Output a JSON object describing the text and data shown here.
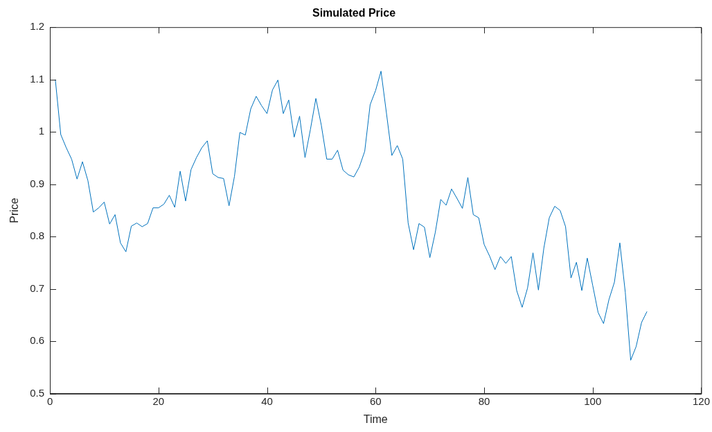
{
  "chart_data": {
    "type": "line",
    "title": "Simulated Price",
    "xlabel": "Time",
    "ylabel": "Price",
    "x": [
      1,
      2,
      3,
      4,
      5,
      6,
      7,
      8,
      9,
      10,
      11,
      12,
      13,
      14,
      15,
      16,
      17,
      18,
      19,
      20,
      21,
      22,
      23,
      24,
      25,
      26,
      27,
      28,
      29,
      30,
      31,
      32,
      33,
      34,
      35,
      36,
      37,
      38,
      39,
      40,
      41,
      42,
      43,
      44,
      45,
      46,
      47,
      48,
      49,
      50,
      51,
      52,
      53,
      54,
      55,
      56,
      57,
      58,
      59,
      60,
      61,
      62,
      63,
      64,
      65,
      66,
      67,
      68,
      69,
      70,
      71,
      72,
      73,
      74,
      75,
      76,
      77,
      78,
      79,
      80,
      81,
      82,
      83,
      84,
      85,
      86,
      87,
      88,
      89,
      90,
      91,
      92,
      93,
      94,
      95,
      96,
      97,
      98,
      99,
      100,
      101,
      102,
      103,
      104,
      105,
      106,
      107,
      108,
      109,
      110
    ],
    "series": [
      {
        "color": "#0072bd",
        "values": [
          1.1,
          0.995,
          0.97,
          0.948,
          0.91,
          0.943,
          0.907,
          0.847,
          0.855,
          0.866,
          0.824,
          0.842,
          0.788,
          0.771,
          0.82,
          0.826,
          0.819,
          0.825,
          0.855,
          0.855,
          0.862,
          0.879,
          0.856,
          0.925,
          0.868,
          0.928,
          0.951,
          0.97,
          0.983,
          0.92,
          0.913,
          0.911,
          0.859,
          0.915,
          0.999,
          0.994,
          1.044,
          1.068,
          1.05,
          1.035,
          1.08,
          1.099,
          1.035,
          1.061,
          0.99,
          1.03,
          0.951,
          1.005,
          1.064,
          1.013,
          0.948,
          0.948,
          0.965,
          0.927,
          0.918,
          0.914,
          0.933,
          0.963,
          1.052,
          1.079,
          1.116,
          1.036,
          0.955,
          0.974,
          0.948,
          0.826,
          0.775,
          0.825,
          0.818,
          0.76,
          0.808,
          0.871,
          0.86,
          0.891,
          0.873,
          0.854,
          0.913,
          0.842,
          0.836,
          0.785,
          0.763,
          0.737,
          0.762,
          0.749,
          0.762,
          0.697,
          0.665,
          0.702,
          0.769,
          0.698,
          0.778,
          0.836,
          0.858,
          0.85,
          0.819,
          0.721,
          0.751,
          0.697,
          0.759,
          0.707,
          0.655,
          0.634,
          0.68,
          0.713,
          0.788,
          0.694,
          0.564,
          0.59,
          0.636,
          0.657
        ]
      }
    ],
    "xlim": [
      0,
      120
    ],
    "xticks": [
      0,
      20,
      40,
      60,
      80,
      100,
      120
    ],
    "ylim": [
      0.5,
      1.2
    ],
    "yticks": [
      0.5,
      0.6,
      0.7,
      0.8,
      0.9,
      1,
      1.1,
      1.2
    ],
    "grid": false,
    "legend": false,
    "marker": "none",
    "line_style": "solid"
  }
}
